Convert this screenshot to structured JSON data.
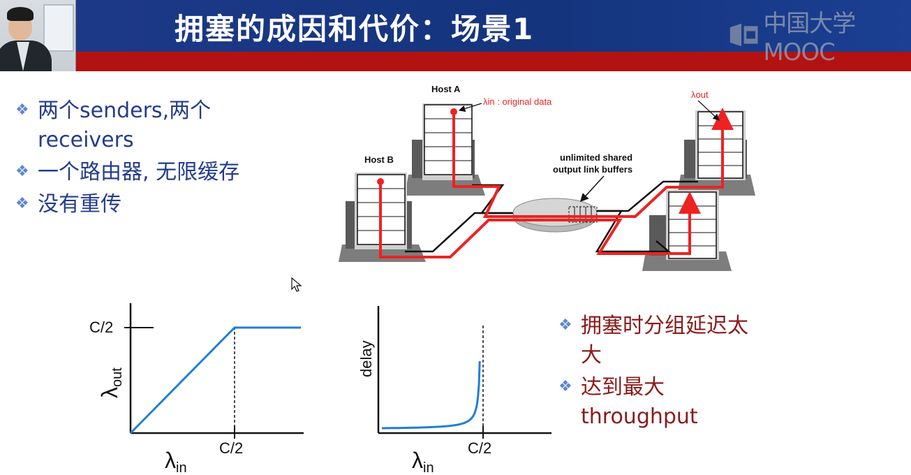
{
  "slide": {
    "title": "拥塞的成因和代价：场景1",
    "watermark": "中国大学MOOC"
  },
  "bullets_left": [
    {
      "text": "两个senders,两个receivers"
    },
    {
      "text": "一个路由器, 无限缓存"
    },
    {
      "text": "没有重传"
    }
  ],
  "bullets_right": [
    {
      "text": "拥塞时分组延迟太大"
    },
    {
      "text": "达到最大throughput"
    }
  ],
  "diagram": {
    "host_a": "Host A",
    "host_b": "Host B",
    "lambda_in_label": "λin : original data",
    "lambda_out_label": "λout",
    "buffer_label_1": "unlimited shared",
    "buffer_label_2": "output link buffers",
    "colors": {
      "flow": "#ee2222",
      "link": "#111111"
    }
  },
  "chart_data": [
    {
      "type": "line",
      "series": [
        {
          "x": [
            0,
            0.5,
            1.0
          ],
          "y": [
            0,
            0.5,
            0.5
          ]
        }
      ],
      "xlabel": "λin",
      "ylabel": "λout",
      "x_ticks": [
        "C/2"
      ],
      "y_ticks": [
        "C/2"
      ],
      "color": "#1f7fd6"
    },
    {
      "type": "line",
      "series": [
        {
          "x": [
            0,
            0.2,
            0.35,
            0.45,
            0.49,
            0.5
          ],
          "y": [
            0.05,
            0.12,
            0.25,
            0.55,
            1.0,
            1.8
          ]
        }
      ],
      "xlabel": "λin",
      "ylabel": "delay",
      "x_ticks": [
        "C/2"
      ],
      "color": "#1f7fd6"
    }
  ]
}
